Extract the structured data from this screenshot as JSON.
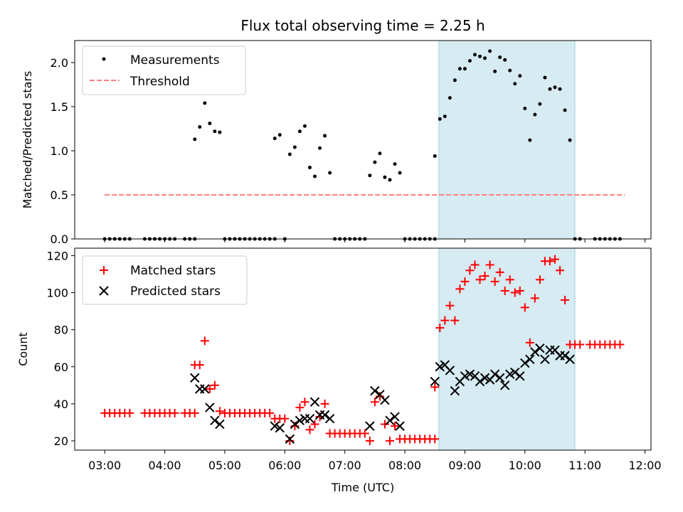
{
  "chart_data": [
    {
      "type": "scatter",
      "title": "Flux total observing time = 2.25 h",
      "ylabel": "Matched/Predicted stars",
      "xlabel": "",
      "ylim": [
        0,
        2.25
      ],
      "yticks": [
        "0.0",
        "0.5",
        "1.0",
        "1.5",
        "2.0"
      ],
      "grid": false,
      "legend_position": "upper-left",
      "highlight_interval": [
        "08:34",
        "10:50"
      ],
      "highlight_color": "#add8e6",
      "series": [
        {
          "name": "Measurements",
          "marker": "dot",
          "color": "#000000",
          "points": [
            [
              "03:00",
              0
            ],
            [
              "03:05",
              0
            ],
            [
              "03:10",
              0
            ],
            [
              "03:15",
              0
            ],
            [
              "03:20",
              0
            ],
            [
              "03:25",
              0
            ],
            [
              "03:40",
              0
            ],
            [
              "03:45",
              0
            ],
            [
              "03:50",
              0
            ],
            [
              "03:55",
              0
            ],
            [
              "04:00",
              0
            ],
            [
              "04:05",
              0
            ],
            [
              "04:10",
              0
            ],
            [
              "04:20",
              0
            ],
            [
              "04:25",
              0
            ],
            [
              "04:30",
              0
            ],
            [
              "04:30",
              1.13
            ],
            [
              "04:35",
              1.27
            ],
            [
              "04:40",
              1.54
            ],
            [
              "04:45",
              1.31
            ],
            [
              "04:50",
              1.22
            ],
            [
              "04:55",
              1.21
            ],
            [
              "05:00",
              0
            ],
            [
              "05:05",
              0
            ],
            [
              "05:10",
              0
            ],
            [
              "05:15",
              0
            ],
            [
              "05:20",
              0
            ],
            [
              "05:25",
              0
            ],
            [
              "05:30",
              0
            ],
            [
              "05:35",
              0
            ],
            [
              "05:40",
              0
            ],
            [
              "05:45",
              0
            ],
            [
              "05:50",
              0
            ],
            [
              "06:00",
              0
            ],
            [
              "05:50",
              1.14
            ],
            [
              "05:55",
              1.18
            ],
            [
              "06:05",
              0.96
            ],
            [
              "06:10",
              1.04
            ],
            [
              "06:15",
              1.22
            ],
            [
              "06:20",
              1.28
            ],
            [
              "06:25",
              0.81
            ],
            [
              "06:30",
              0.71
            ],
            [
              "06:35",
              1.03
            ],
            [
              "06:40",
              1.17
            ],
            [
              "06:45",
              0.75
            ],
            [
              "06:50",
              0
            ],
            [
              "06:55",
              0
            ],
            [
              "07:00",
              0
            ],
            [
              "07:05",
              0
            ],
            [
              "07:10",
              0
            ],
            [
              "07:15",
              0
            ],
            [
              "07:20",
              0
            ],
            [
              "07:25",
              0.72
            ],
            [
              "07:30",
              0.87
            ],
            [
              "07:35",
              0.97
            ],
            [
              "07:40",
              0.7
            ],
            [
              "07:45",
              0.67
            ],
            [
              "07:50",
              0.85
            ],
            [
              "07:55",
              0.75
            ],
            [
              "08:00",
              0
            ],
            [
              "08:05",
              0
            ],
            [
              "08:10",
              0
            ],
            [
              "08:15",
              0
            ],
            [
              "08:20",
              0
            ],
            [
              "08:25",
              0
            ],
            [
              "08:30",
              0
            ],
            [
              "08:30",
              0.94
            ],
            [
              "08:35",
              1.36
            ],
            [
              "08:40",
              1.39
            ],
            [
              "08:45",
              1.6
            ],
            [
              "08:50",
              1.8
            ],
            [
              "08:55",
              1.93
            ],
            [
              "09:00",
              1.93
            ],
            [
              "09:05",
              2.02
            ],
            [
              "09:10",
              2.09
            ],
            [
              "09:15",
              2.07
            ],
            [
              "09:20",
              2.05
            ],
            [
              "09:25",
              2.13
            ],
            [
              "09:30",
              1.9
            ],
            [
              "09:35",
              2.06
            ],
            [
              "09:40",
              2.03
            ],
            [
              "09:45",
              1.91
            ],
            [
              "09:50",
              1.76
            ],
            [
              "09:55",
              1.85
            ],
            [
              "10:00",
              1.48
            ],
            [
              "10:05",
              1.12
            ],
            [
              "10:10",
              1.41
            ],
            [
              "10:15",
              1.53
            ],
            [
              "10:20",
              1.83
            ],
            [
              "10:25",
              1.7
            ],
            [
              "10:30",
              1.72
            ],
            [
              "10:35",
              1.7
            ],
            [
              "10:40",
              1.46
            ],
            [
              "10:45",
              1.12
            ],
            [
              "10:50",
              0
            ],
            [
              "10:55",
              0
            ],
            [
              "11:10",
              0
            ],
            [
              "11:15",
              0
            ],
            [
              "11:20",
              0
            ],
            [
              "11:25",
              0
            ],
            [
              "11:30",
              0
            ],
            [
              "11:35",
              0
            ]
          ]
        },
        {
          "name": "Threshold",
          "style": "dashed-line",
          "color": "#ff7f7f",
          "points": [
            [
              "03:00",
              0.5
            ],
            [
              "11:40",
              0.5
            ]
          ]
        }
      ]
    },
    {
      "type": "scatter",
      "title": "",
      "ylabel": "Count",
      "xlabel": "Time (UTC)",
      "ylim": [
        15,
        124
      ],
      "yticks": [
        "20",
        "40",
        "60",
        "80",
        "100",
        "120"
      ],
      "xticks": [
        "03:00",
        "04:00",
        "05:00",
        "06:00",
        "07:00",
        "08:00",
        "09:00",
        "10:00",
        "11:00",
        "12:00"
      ],
      "grid": false,
      "legend_position": "upper-left",
      "highlight_interval": [
        "08:34",
        "10:50"
      ],
      "highlight_color": "#add8e6",
      "series": [
        {
          "name": "Matched stars",
          "marker": "plus",
          "color": "#ff0000",
          "points": [
            [
              "03:00",
              35
            ],
            [
              "03:05",
              35
            ],
            [
              "03:10",
              35
            ],
            [
              "03:15",
              35
            ],
            [
              "03:20",
              35
            ],
            [
              "03:25",
              35
            ],
            [
              "03:40",
              35
            ],
            [
              "03:45",
              35
            ],
            [
              "03:50",
              35
            ],
            [
              "03:55",
              35
            ],
            [
              "04:00",
              35
            ],
            [
              "04:05",
              35
            ],
            [
              "04:10",
              35
            ],
            [
              "04:20",
              35
            ],
            [
              "04:25",
              35
            ],
            [
              "04:30",
              35
            ],
            [
              "04:30",
              61
            ],
            [
              "04:35",
              61
            ],
            [
              "04:40",
              74
            ],
            [
              "04:45",
              48
            ],
            [
              "04:50",
              50
            ],
            [
              "04:55",
              36
            ],
            [
              "05:00",
              35
            ],
            [
              "05:05",
              35
            ],
            [
              "05:10",
              35
            ],
            [
              "05:15",
              35
            ],
            [
              "05:20",
              35
            ],
            [
              "05:25",
              35
            ],
            [
              "05:30",
              35
            ],
            [
              "05:35",
              35
            ],
            [
              "05:40",
              35
            ],
            [
              "05:45",
              35
            ],
            [
              "05:50",
              32
            ],
            [
              "05:55",
              32
            ],
            [
              "06:00",
              32
            ],
            [
              "06:05",
              20
            ],
            [
              "06:10",
              28
            ],
            [
              "06:15",
              38
            ],
            [
              "06:20",
              41
            ],
            [
              "06:25",
              26
            ],
            [
              "06:30",
              29
            ],
            [
              "06:35",
              33
            ],
            [
              "06:40",
              40
            ],
            [
              "06:45",
              24
            ],
            [
              "06:50",
              24
            ],
            [
              "06:55",
              24
            ],
            [
              "07:00",
              24
            ],
            [
              "07:05",
              24
            ],
            [
              "07:10",
              24
            ],
            [
              "07:15",
              24
            ],
            [
              "07:20",
              24
            ],
            [
              "07:25",
              20
            ],
            [
              "07:30",
              41
            ],
            [
              "07:35",
              44
            ],
            [
              "07:40",
              29
            ],
            [
              "07:45",
              20
            ],
            [
              "07:50",
              28
            ],
            [
              "07:55",
              21
            ],
            [
              "08:00",
              21
            ],
            [
              "08:05",
              21
            ],
            [
              "08:10",
              21
            ],
            [
              "08:15",
              21
            ],
            [
              "08:20",
              21
            ],
            [
              "08:25",
              21
            ],
            [
              "08:30",
              21
            ],
            [
              "08:30",
              49
            ],
            [
              "08:35",
              81
            ],
            [
              "08:40",
              85
            ],
            [
              "08:45",
              93
            ],
            [
              "08:50",
              85
            ],
            [
              "08:55",
              102
            ],
            [
              "09:00",
              106
            ],
            [
              "09:05",
              112
            ],
            [
              "09:10",
              115
            ],
            [
              "09:15",
              107
            ],
            [
              "09:20",
              109
            ],
            [
              "09:25",
              115
            ],
            [
              "09:30",
              106
            ],
            [
              "09:35",
              111
            ],
            [
              "09:40",
              101
            ],
            [
              "09:45",
              107
            ],
            [
              "09:50",
              100
            ],
            [
              "09:55",
              101
            ],
            [
              "10:00",
              92
            ],
            [
              "10:05",
              73
            ],
            [
              "10:10",
              97
            ],
            [
              "10:15",
              107
            ],
            [
              "10:20",
              117
            ],
            [
              "10:25",
              117
            ],
            [
              "10:30",
              118
            ],
            [
              "10:35",
              112
            ],
            [
              "10:40",
              96
            ],
            [
              "10:45",
              72
            ],
            [
              "10:50",
              72
            ],
            [
              "10:55",
              72
            ],
            [
              "11:05",
              72
            ],
            [
              "11:10",
              72
            ],
            [
              "11:15",
              72
            ],
            [
              "11:20",
              72
            ],
            [
              "11:25",
              72
            ],
            [
              "11:30",
              72
            ],
            [
              "11:35",
              72
            ]
          ]
        },
        {
          "name": "Predicted stars",
          "marker": "x",
          "color": "#000000",
          "points": [
            [
              "04:30",
              54
            ],
            [
              "04:35",
              48
            ],
            [
              "04:40",
              48
            ],
            [
              "04:45",
              38
            ],
            [
              "04:50",
              31
            ],
            [
              "04:55",
              29
            ],
            [
              "05:50",
              28
            ],
            [
              "05:55",
              27
            ],
            [
              "06:05",
              21
            ],
            [
              "06:10",
              29
            ],
            [
              "06:15",
              31
            ],
            [
              "06:20",
              32
            ],
            [
              "06:25",
              32
            ],
            [
              "06:30",
              41
            ],
            [
              "06:35",
              34
            ],
            [
              "06:40",
              34
            ],
            [
              "06:45",
              32
            ],
            [
              "07:25",
              28
            ],
            [
              "07:30",
              47
            ],
            [
              "07:35",
              45
            ],
            [
              "07:40",
              42
            ],
            [
              "07:45",
              31
            ],
            [
              "07:50",
              33
            ],
            [
              "07:55",
              28
            ],
            [
              "08:30",
              52
            ],
            [
              "08:35",
              60
            ],
            [
              "08:40",
              61
            ],
            [
              "08:45",
              58
            ],
            [
              "08:50",
              47
            ],
            [
              "08:55",
              52
            ],
            [
              "09:00",
              55
            ],
            [
              "09:05",
              56
            ],
            [
              "09:10",
              55
            ],
            [
              "09:15",
              52
            ],
            [
              "09:20",
              54
            ],
            [
              "09:25",
              53
            ],
            [
              "09:30",
              56
            ],
            [
              "09:35",
              54
            ],
            [
              "09:40",
              50
            ],
            [
              "09:45",
              56
            ],
            [
              "09:50",
              57
            ],
            [
              "09:55",
              55
            ],
            [
              "10:00",
              62
            ],
            [
              "10:05",
              64
            ],
            [
              "10:10",
              68
            ],
            [
              "10:15",
              70
            ],
            [
              "10:20",
              64
            ],
            [
              "10:25",
              69
            ],
            [
              "10:30",
              69
            ],
            [
              "10:35",
              66
            ],
            [
              "10:40",
              66
            ],
            [
              "10:45",
              64
            ]
          ]
        }
      ]
    }
  ]
}
